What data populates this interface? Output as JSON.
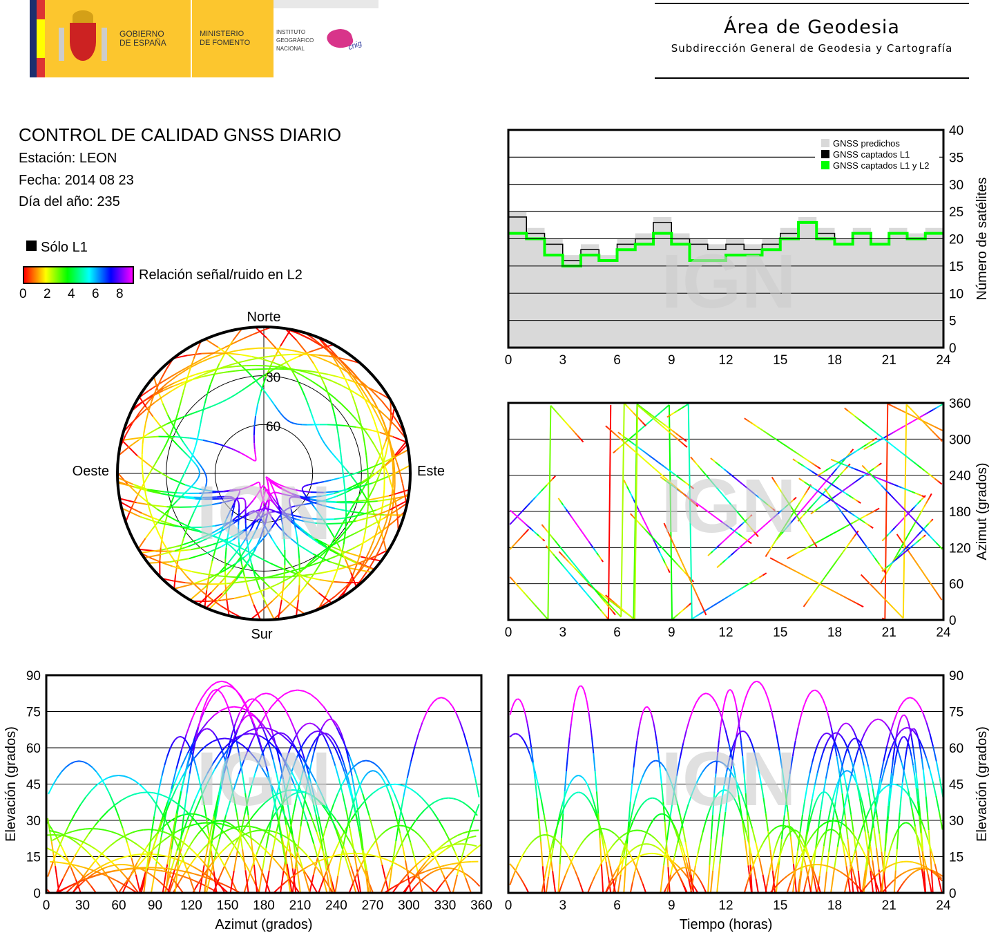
{
  "header": {
    "gov_line1": "GOBIERNO",
    "gov_line2": "DE ESPAÑA",
    "ministry_line1": "MINISTERIO",
    "ministry_line2": "DE FOMENTO",
    "ign_line1": "INSTITUTO",
    "ign_line2": "GEOGRÁFICO",
    "ign_line3": "NACIONAL",
    "cnig_logo_text": "cnig",
    "area_title": "Área de Geodesia",
    "area_subtitle": "Subdirección General de Geodesia y Cartografía"
  },
  "report": {
    "title": "CONTROL DE CALIDAD GNSS DIARIO",
    "station": "Estación: LEON",
    "date": "Fecha: 2014 08 23",
    "doy": "Día del año: 235"
  },
  "legend": {
    "only_l1": "Sólo L1",
    "snr_label": "Relación señal/ruido en L2",
    "snr_ticks": [
      "0",
      "2",
      "4",
      "6",
      "8"
    ],
    "colorscale": [
      "#ff0000",
      "#ffff00",
      "#00ff00",
      "#00ffff",
      "#0000ff",
      "#ff00ff"
    ]
  },
  "watermark": "IGN",
  "chart_data": [
    {
      "type": "line",
      "id": "satellite-count",
      "ylabel": "Número de satélites",
      "xlim": [
        0,
        24
      ],
      "ylim": [
        0,
        40
      ],
      "xticks": [
        "0",
        "3",
        "6",
        "9",
        "12",
        "15",
        "18",
        "21",
        "24"
      ],
      "yticks": [
        "0",
        "5",
        "10",
        "15",
        "20",
        "25",
        "30",
        "35",
        "40"
      ],
      "grid": true,
      "legend_position": "top-right",
      "x": [
        0,
        1,
        2,
        3,
        4,
        5,
        6,
        7,
        8,
        9,
        10,
        11,
        12,
        13,
        14,
        15,
        16,
        17,
        18,
        19,
        20,
        21,
        22,
        23,
        24
      ],
      "series": [
        {
          "name": "GNSS predichos",
          "color": "#d9d9d9",
          "values": [
            25,
            22,
            20,
            17,
            19,
            17,
            20,
            21,
            24,
            21,
            20,
            19,
            20,
            19,
            20,
            22,
            24,
            22,
            20,
            22,
            20,
            22,
            21,
            22,
            22
          ]
        },
        {
          "name": "GNSS captados L1",
          "color": "#000000",
          "values": [
            24,
            21,
            19,
            16,
            18,
            16,
            19,
            20,
            23,
            20,
            19,
            18,
            19,
            18,
            19,
            21,
            23,
            21,
            19,
            21,
            19,
            21,
            20,
            21,
            21
          ]
        },
        {
          "name": "GNSS captados L1 y L2",
          "color": "#00ff00",
          "values": [
            21,
            20,
            17,
            15,
            17,
            16,
            18,
            19,
            21,
            19,
            16,
            16,
            17,
            17,
            18,
            20,
            23,
            20,
            19,
            21,
            19,
            21,
            20,
            21,
            21
          ]
        }
      ]
    },
    {
      "type": "scatter",
      "id": "azimuth-vs-time",
      "ylabel": "Azimut (grados)",
      "xlim": [
        0,
        24
      ],
      "ylim": [
        0,
        360
      ],
      "xticks": [
        "0",
        "3",
        "6",
        "9",
        "12",
        "15",
        "18",
        "21",
        "24"
      ],
      "yticks": [
        "0",
        "60",
        "120",
        "180",
        "240",
        "300",
        "360"
      ],
      "grid": true
    },
    {
      "type": "scatter",
      "id": "elevation-vs-azimuth",
      "xlabel": "Azimut (grados)",
      "ylabel": "Elevación (grados)",
      "xlim": [
        0,
        360
      ],
      "ylim": [
        0,
        90
      ],
      "xticks": [
        "0",
        "30",
        "60",
        "90",
        "120",
        "150",
        "180",
        "210",
        "240",
        "270",
        "300",
        "330",
        "360"
      ],
      "yticks": [
        "0",
        "15",
        "30",
        "45",
        "60",
        "75",
        "90"
      ],
      "grid": true
    },
    {
      "type": "scatter",
      "id": "elevation-vs-time",
      "xlabel": "Tiempo (horas)",
      "ylabel": "Elevación (grados)",
      "xlim": [
        0,
        24
      ],
      "ylim": [
        0,
        90
      ],
      "xticks": [
        "0",
        "3",
        "6",
        "9",
        "12",
        "15",
        "18",
        "21",
        "24"
      ],
      "yticks": [
        "0",
        "15",
        "30",
        "45",
        "60",
        "75",
        "90"
      ],
      "grid": true
    },
    {
      "type": "scatter",
      "id": "skyplot",
      "directions": {
        "north": "Norte",
        "south": "Sur",
        "east": "Este",
        "west": "Oeste"
      },
      "elevation_rings": [
        "30",
        "60"
      ]
    }
  ]
}
